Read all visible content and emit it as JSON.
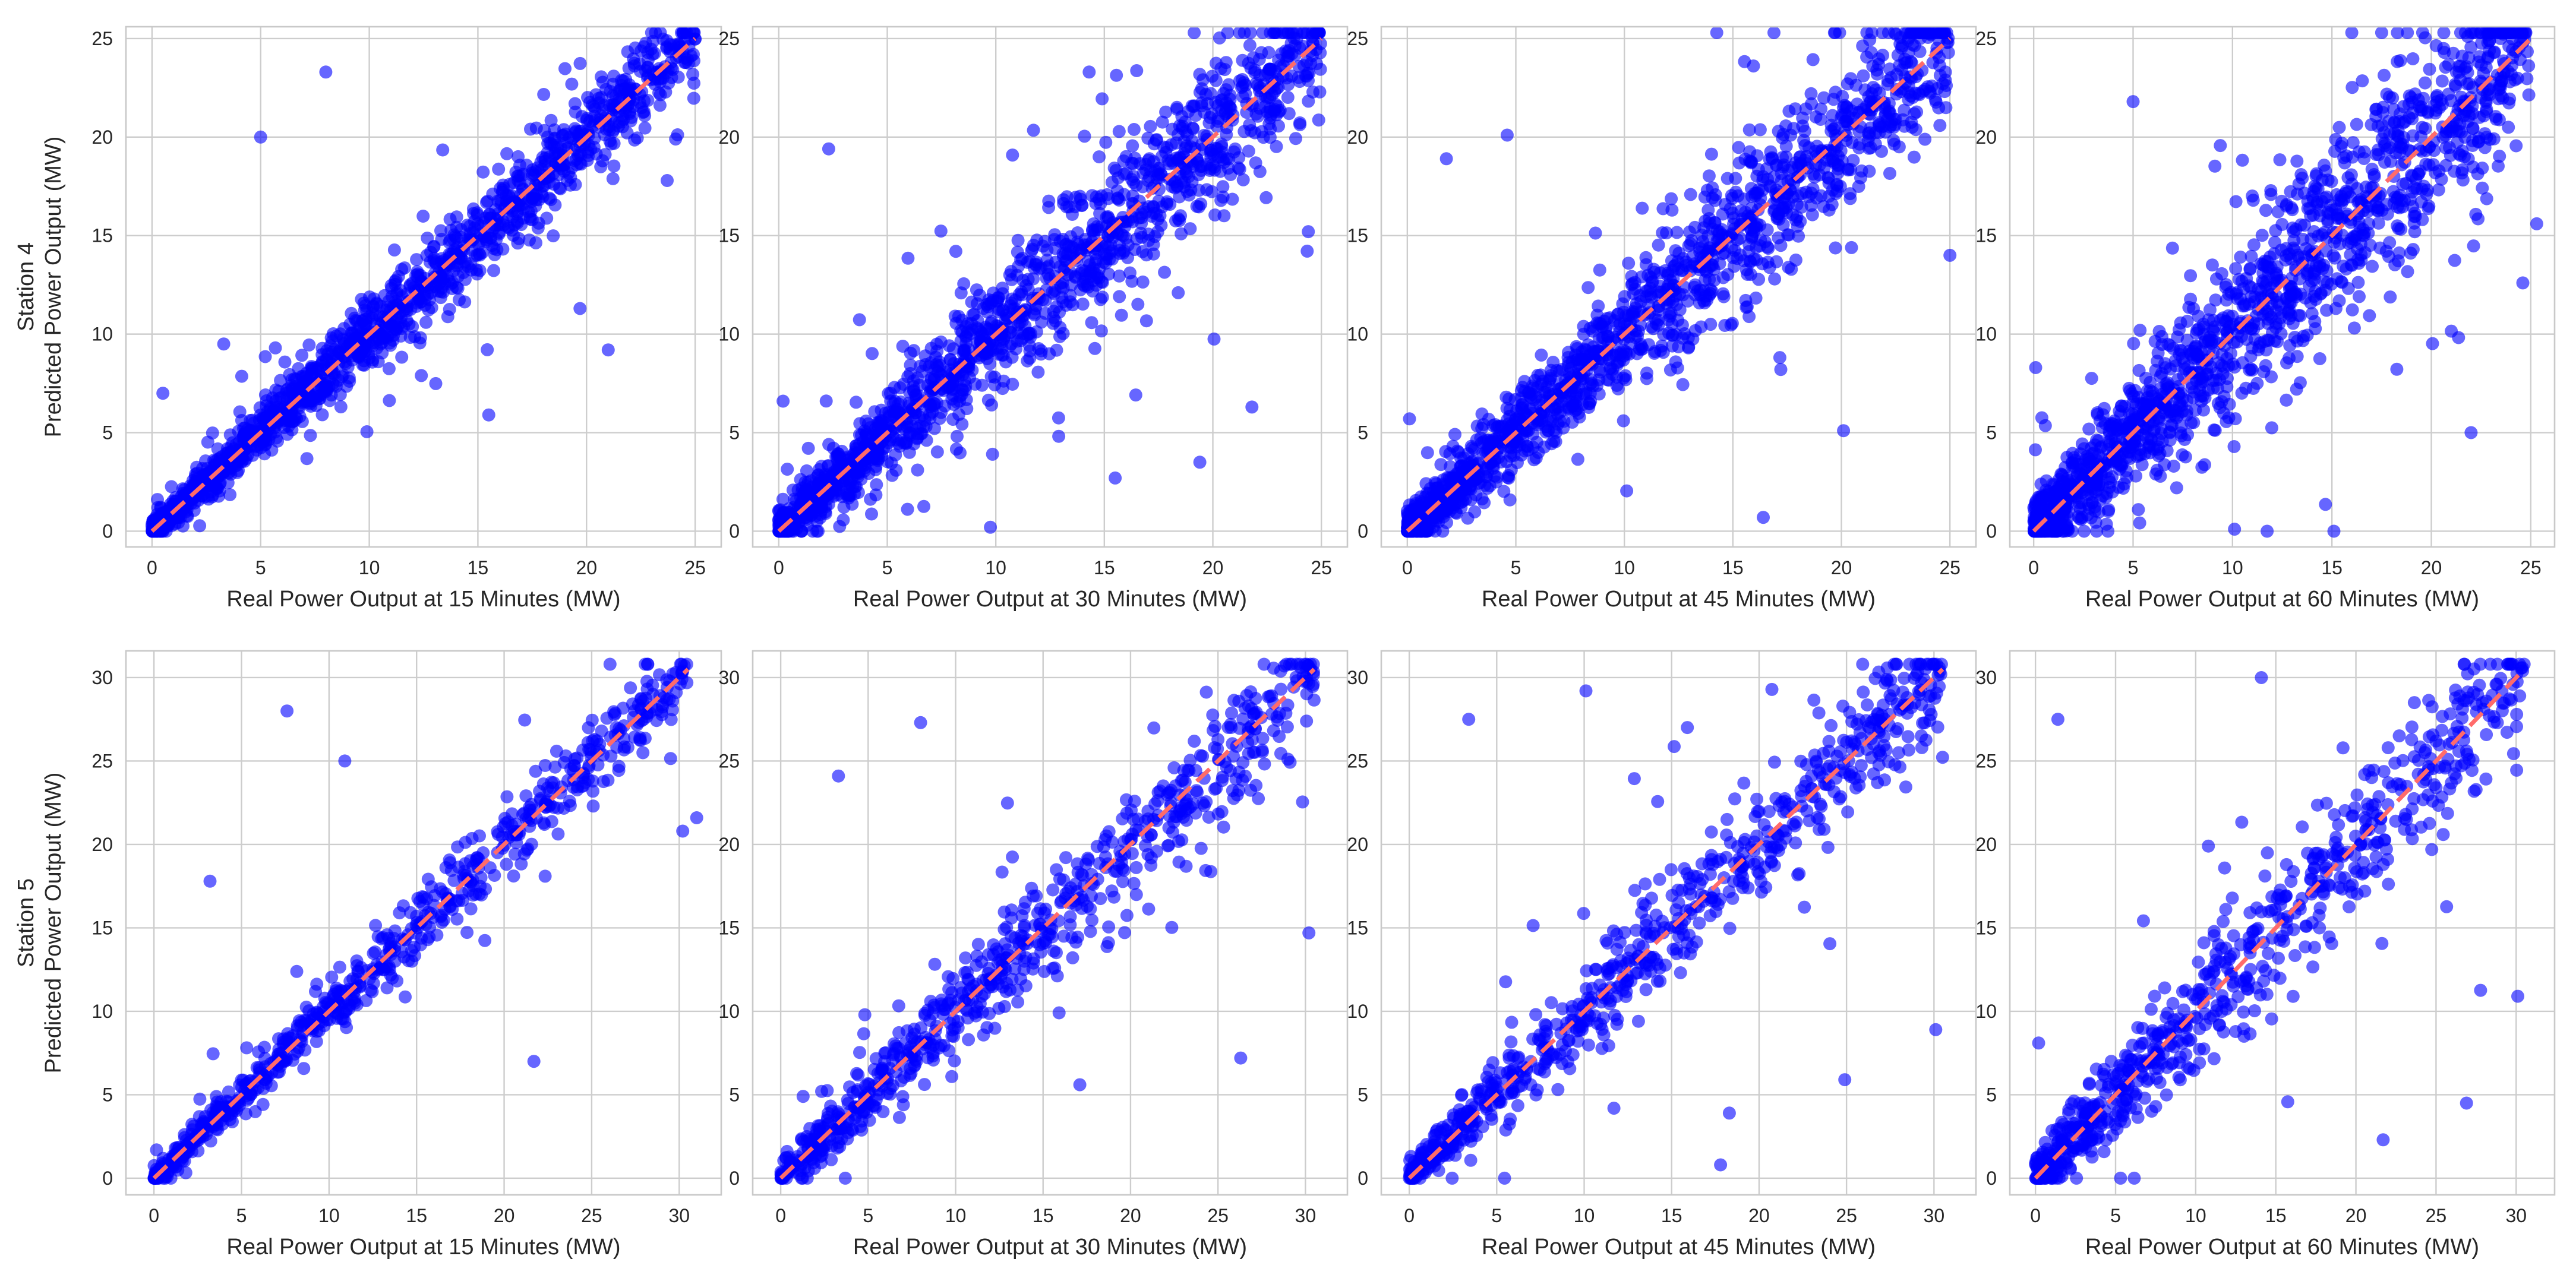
{
  "figure_title": "",
  "colors": {
    "points": "#0000ff",
    "identity_line": "#ff6b6b",
    "grid": "#cdcdcd"
  },
  "chart_data": [
    {
      "type": "scatter",
      "row": 0,
      "col": 0,
      "row_label": "Station 4",
      "ylabel": "Predicted Power Output (MW)",
      "xlabel": "Real Power Output at 15 Minutes (MW)",
      "xlim": [
        -1.2,
        26.2
      ],
      "ylim": [
        -0.8,
        25.6
      ],
      "xticks": [
        0,
        5,
        10,
        15,
        20,
        25
      ],
      "yticks": [
        0,
        5,
        10,
        15,
        20,
        25
      ],
      "reference_line": {
        "style": "dashed",
        "from": [
          0,
          0
        ],
        "to": [
          25,
          25
        ]
      },
      "series": [
        {
          "name": "predictions",
          "noise_level": "low",
          "points": [
            [
              0.3,
              0.4
            ],
            [
              1.2,
              1.0
            ],
            [
              2.5,
              2.9
            ],
            [
              4.0,
              3.6
            ],
            [
              5.6,
              6.1
            ],
            [
              7.3,
              6.8
            ],
            [
              8.1,
              9.0
            ],
            [
              10.4,
              10.1
            ],
            [
              12.0,
              12.6
            ],
            [
              13.6,
              12.9
            ],
            [
              15.0,
              15.6
            ],
            [
              16.8,
              16.1
            ],
            [
              18.3,
              19.0
            ],
            [
              20.1,
              19.6
            ],
            [
              22.0,
              22.4
            ],
            [
              23.9,
              23.5
            ],
            [
              24.7,
              24.6
            ],
            [
              8.0,
              23.3
            ],
            [
              5.0,
              20.0
            ],
            [
              15.5,
              5.9
            ],
            [
              2.7,
              2.6
            ],
            [
              0.5,
              7.0
            ],
            [
              3.3,
              9.5
            ],
            [
              19.7,
              11.3
            ],
            [
              21.0,
              9.2
            ],
            [
              24.1,
              19.9
            ]
          ]
        }
      ]
    },
    {
      "type": "scatter",
      "row": 0,
      "col": 1,
      "xlabel": "Real Power Output at 30 Minutes (MW)",
      "xlim": [
        -1.2,
        26.2
      ],
      "ylim": [
        -0.8,
        25.6
      ],
      "xticks": [
        0,
        5,
        10,
        15,
        20,
        25
      ],
      "yticks": [
        0,
        5,
        10,
        15,
        20,
        25
      ],
      "reference_line": {
        "style": "dashed",
        "from": [
          0,
          0
        ],
        "to": [
          25,
          25
        ]
      },
      "series": [
        {
          "name": "predictions",
          "noise_level": "medium",
          "points": [
            [
              0.2,
              0.3
            ],
            [
              1.5,
              1.9
            ],
            [
              3.0,
              2.4
            ],
            [
              4.6,
              5.5
            ],
            [
              6.2,
              5.7
            ],
            [
              7.9,
              8.7
            ],
            [
              9.5,
              9.0
            ],
            [
              11.2,
              12.0
            ],
            [
              13.0,
              12.4
            ],
            [
              14.7,
              15.3
            ],
            [
              16.3,
              15.7
            ],
            [
              18.1,
              18.8
            ],
            [
              19.9,
              19.2
            ],
            [
              21.5,
              22.2
            ],
            [
              23.4,
              23.0
            ],
            [
              24.6,
              24.8
            ],
            [
              2.3,
              19.4
            ],
            [
              15.5,
              2.7
            ],
            [
              19.4,
              3.5
            ],
            [
              24.4,
              15.2
            ],
            [
              14.3,
              23.3
            ],
            [
              0.2,
              6.6
            ],
            [
              21.8,
              6.3
            ]
          ]
        }
      ]
    },
    {
      "type": "scatter",
      "row": 0,
      "col": 2,
      "xlabel": "Real Power Output at 45 Minutes (MW)",
      "xlim": [
        -1.2,
        26.2
      ],
      "ylim": [
        -0.8,
        25.6
      ],
      "xticks": [
        0,
        5,
        10,
        15,
        20,
        25
      ],
      "yticks": [
        0,
        5,
        10,
        15,
        20,
        25
      ],
      "reference_line": {
        "style": "dashed",
        "from": [
          0,
          0
        ],
        "to": [
          25,
          25
        ]
      },
      "series": [
        {
          "name": "predictions",
          "noise_level": "medium",
          "points": [
            [
              0.3,
              0.2
            ],
            [
              1.4,
              2.0
            ],
            [
              2.9,
              2.3
            ],
            [
              4.4,
              5.3
            ],
            [
              6.0,
              5.4
            ],
            [
              7.6,
              8.6
            ],
            [
              9.3,
              8.7
            ],
            [
              11.0,
              11.9
            ],
            [
              12.7,
              12.0
            ],
            [
              14.5,
              15.3
            ],
            [
              16.1,
              15.4
            ],
            [
              17.9,
              18.7
            ],
            [
              19.6,
              18.9
            ],
            [
              21.4,
              22.2
            ],
            [
              23.1,
              22.6
            ],
            [
              24.5,
              24.9
            ],
            [
              1.8,
              18.9
            ],
            [
              4.6,
              20.1
            ],
            [
              16.4,
              0.7
            ],
            [
              25.0,
              14.0
            ],
            [
              0.1,
              5.7
            ],
            [
              20.1,
              5.1
            ]
          ]
        }
      ]
    },
    {
      "type": "scatter",
      "row": 0,
      "col": 3,
      "xlabel": "Real Power Output at 60 Minutes (MW)",
      "xlim": [
        -1.2,
        26.2
      ],
      "ylim": [
        -0.8,
        25.6
      ],
      "xticks": [
        0,
        5,
        10,
        15,
        20,
        25
      ],
      "yticks": [
        0,
        5,
        10,
        15,
        20,
        25
      ],
      "reference_line": {
        "style": "dashed",
        "from": [
          0,
          0
        ],
        "to": [
          25,
          25
        ]
      },
      "series": [
        {
          "name": "predictions",
          "noise_level": "high",
          "points": [
            [
              0.2,
              0.5
            ],
            [
              1.6,
              2.4
            ],
            [
              3.2,
              2.1
            ],
            [
              4.8,
              6.0
            ],
            [
              6.4,
              5.2
            ],
            [
              8.1,
              9.3
            ],
            [
              9.8,
              8.4
            ],
            [
              11.5,
              12.7
            ],
            [
              13.2,
              11.9
            ],
            [
              14.9,
              16.1
            ],
            [
              16.6,
              15.0
            ],
            [
              18.4,
              19.5
            ],
            [
              20.1,
              18.6
            ],
            [
              21.8,
              22.7
            ],
            [
              23.5,
              22.1
            ],
            [
              24.6,
              24.8
            ],
            [
              5.0,
              21.8
            ],
            [
              10.1,
              0.1
            ],
            [
              24.6,
              12.6
            ],
            [
              25.3,
              15.6
            ],
            [
              0.1,
              8.3
            ],
            [
              22.0,
              5.0
            ]
          ]
        }
      ]
    },
    {
      "type": "scatter",
      "row": 1,
      "col": 0,
      "row_label": "Station 5",
      "ylabel": "Predicted Power Output (MW)",
      "xlabel": "Real Power Output at 15 Minutes (MW)",
      "xlim": [
        -1.6,
        32.4
      ],
      "ylim": [
        -1.0,
        31.6
      ],
      "xticks": [
        0,
        5,
        10,
        15,
        20,
        25,
        30
      ],
      "yticks": [
        0,
        5,
        10,
        15,
        20,
        25,
        30
      ],
      "reference_line": {
        "style": "dashed",
        "from": [
          0,
          0
        ],
        "to": [
          30.5,
          30.5
        ]
      },
      "series": [
        {
          "name": "predictions",
          "noise_level": "low",
          "points": [
            [
              0.2,
              0.3
            ],
            [
              1.8,
              1.5
            ],
            [
              3.6,
              4.0
            ],
            [
              5.5,
              5.1
            ],
            [
              7.4,
              8.0
            ],
            [
              9.3,
              8.8
            ],
            [
              11.2,
              11.8
            ],
            [
              13.1,
              12.5
            ],
            [
              15.0,
              15.7
            ],
            [
              16.9,
              16.3
            ],
            [
              18.8,
              19.5
            ],
            [
              20.7,
              20.1
            ],
            [
              22.6,
              23.2
            ],
            [
              24.5,
              24.0
            ],
            [
              26.4,
              27.0
            ],
            [
              28.3,
              27.9
            ],
            [
              30.2,
              30.4
            ],
            [
              7.6,
              28.0
            ],
            [
              10.9,
              25.0
            ],
            [
              30.2,
              20.8
            ],
            [
              31.0,
              21.6
            ],
            [
              21.7,
              7.0
            ],
            [
              3.2,
              17.8
            ]
          ]
        }
      ]
    },
    {
      "type": "scatter",
      "row": 1,
      "col": 1,
      "xlabel": "Real Power Output at 30 Minutes (MW)",
      "xlim": [
        -1.6,
        32.4
      ],
      "ylim": [
        -1.0,
        31.6
      ],
      "xticks": [
        0,
        5,
        10,
        15,
        20,
        25,
        30
      ],
      "yticks": [
        0,
        5,
        10,
        15,
        20,
        25,
        30
      ],
      "reference_line": {
        "style": "dashed",
        "from": [
          0,
          0
        ],
        "to": [
          30.5,
          30.5
        ]
      },
      "series": [
        {
          "name": "predictions",
          "noise_level": "medium",
          "points": [
            [
              0.3,
              0.2
            ],
            [
              2.0,
              2.6
            ],
            [
              3.9,
              3.4
            ],
            [
              5.8,
              6.6
            ],
            [
              7.7,
              7.1
            ],
            [
              9.6,
              10.5
            ],
            [
              11.5,
              10.9
            ],
            [
              13.4,
              14.4
            ],
            [
              15.3,
              14.6
            ],
            [
              17.2,
              18.2
            ],
            [
              19.1,
              18.4
            ],
            [
              21.0,
              22.0
            ],
            [
              22.9,
              22.2
            ],
            [
              24.8,
              25.8
            ],
            [
              26.7,
              26.1
            ],
            [
              28.6,
              29.3
            ],
            [
              30.3,
              30.5
            ],
            [
              3.3,
              24.1
            ],
            [
              8.0,
              27.3
            ],
            [
              30.2,
              14.7
            ],
            [
              26.3,
              7.2
            ],
            [
              17.1,
              5.6
            ]
          ]
        }
      ]
    },
    {
      "type": "scatter",
      "row": 1,
      "col": 2,
      "xlabel": "Real Power Output at 45 Minutes (MW)",
      "xlim": [
        -1.6,
        32.4
      ],
      "ylim": [
        -1.0,
        31.6
      ],
      "xticks": [
        0,
        5,
        10,
        15,
        20,
        25,
        30
      ],
      "yticks": [
        0,
        5,
        10,
        15,
        20,
        25,
        30
      ],
      "reference_line": {
        "style": "dashed",
        "from": [
          0,
          0
        ],
        "to": [
          30.5,
          30.5
        ]
      },
      "series": [
        {
          "name": "predictions",
          "noise_level": "medium",
          "points": [
            [
              0.2,
              0.4
            ],
            [
              2.1,
              1.7
            ],
            [
              4.0,
              4.8
            ],
            [
              5.9,
              5.2
            ],
            [
              7.8,
              8.8
            ],
            [
              9.7,
              9.1
            ],
            [
              11.6,
              12.7
            ],
            [
              13.5,
              12.9
            ],
            [
              15.4,
              16.5
            ],
            [
              17.3,
              16.8
            ],
            [
              19.2,
              20.3
            ],
            [
              21.1,
              20.5
            ],
            [
              23.0,
              24.1
            ],
            [
              24.9,
              24.3
            ],
            [
              26.8,
              27.8
            ],
            [
              28.7,
              28.2
            ],
            [
              30.3,
              30.6
            ],
            [
              10.1,
              29.2
            ],
            [
              3.4,
              27.5
            ],
            [
              24.9,
              5.9
            ],
            [
              30.1,
              8.9
            ],
            [
              18.3,
              3.9
            ]
          ]
        }
      ]
    },
    {
      "type": "scatter",
      "row": 1,
      "col": 3,
      "xlabel": "Real Power Output at 60 Minutes (MW)",
      "xlim": [
        -1.6,
        32.4
      ],
      "ylim": [
        -1.0,
        31.6
      ],
      "xticks": [
        0,
        5,
        10,
        15,
        20,
        25,
        30
      ],
      "yticks": [
        0,
        5,
        10,
        15,
        20,
        25,
        30
      ],
      "reference_line": {
        "style": "dashed",
        "from": [
          0,
          0
        ],
        "to": [
          30.5,
          30.5
        ]
      },
      "series": [
        {
          "name": "predictions",
          "noise_level": "high",
          "points": [
            [
              0.3,
              0.6
            ],
            [
              2.2,
              2.9
            ],
            [
              4.1,
              3.3
            ],
            [
              6.0,
              7.1
            ],
            [
              7.9,
              6.9
            ],
            [
              9.8,
              11.0
            ],
            [
              11.7,
              10.6
            ],
            [
              13.6,
              14.8
            ],
            [
              15.5,
              14.2
            ],
            [
              17.4,
              18.6
            ],
            [
              19.3,
              18.0
            ],
            [
              21.2,
              22.4
            ],
            [
              23.1,
              21.8
            ],
            [
              25.0,
              26.2
            ],
            [
              26.9,
              25.6
            ],
            [
              28.8,
              29.6
            ],
            [
              30.4,
              30.4
            ],
            [
              1.4,
              27.5
            ],
            [
              14.1,
              30.0
            ],
            [
              21.7,
              2.3
            ],
            [
              30.1,
              10.9
            ],
            [
              26.9,
              4.5
            ],
            [
              0.2,
              8.1
            ]
          ]
        }
      ]
    }
  ]
}
